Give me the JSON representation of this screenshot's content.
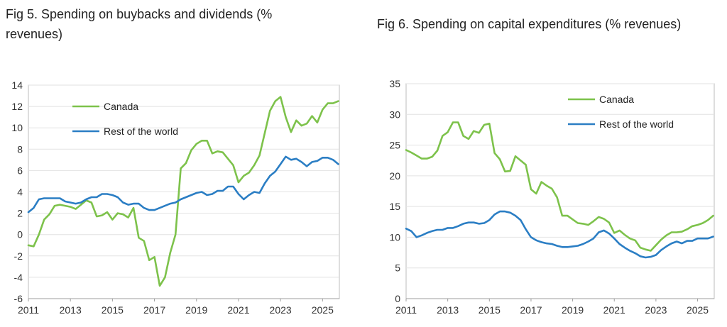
{
  "colors": {
    "canada": "#7DC24B",
    "rest": "#2B7EC4"
  },
  "chart_data": [
    {
      "type": "line",
      "title": "Fig 5. Spending on buybacks and dividends (% revenues)",
      "xlabel": "",
      "ylabel": "",
      "xlim": [
        2011,
        2025.8
      ],
      "ylim": [
        -6,
        14
      ],
      "yticks": [
        -6,
        -4,
        -2,
        0,
        2,
        4,
        6,
        8,
        10,
        12,
        14
      ],
      "xticks": [
        2011,
        2013,
        2015,
        2017,
        2019,
        2021,
        2023,
        2025
      ],
      "grid": true,
      "legend": "top-left",
      "series": [
        {
          "name": "Canada",
          "color": "#7DC24B",
          "x": [
            2011,
            2011.25,
            2011.5,
            2011.75,
            2012,
            2012.25,
            2012.5,
            2012.75,
            2013,
            2013.25,
            2013.5,
            2013.75,
            2014,
            2014.25,
            2014.5,
            2014.75,
            2015,
            2015.25,
            2015.5,
            2015.75,
            2016,
            2016.25,
            2016.5,
            2016.75,
            2017,
            2017.25,
            2017.5,
            2017.75,
            2018,
            2018.25,
            2018.5,
            2018.75,
            2019,
            2019.25,
            2019.5,
            2019.75,
            2020,
            2020.25,
            2020.5,
            2020.75,
            2021,
            2021.25,
            2021.5,
            2021.75,
            2022,
            2022.25,
            2022.5,
            2022.75,
            2023,
            2023.25,
            2023.5,
            2023.75,
            2024,
            2024.25,
            2024.5,
            2024.75,
            2025,
            2025.25,
            2025.5,
            2025.75
          ],
          "y": [
            -1,
            -1.1,
            0,
            1.4,
            1.9,
            2.7,
            2.8,
            2.7,
            2.6,
            2.4,
            2.8,
            3.2,
            3,
            1.7,
            1.8,
            2.1,
            1.4,
            2,
            1.9,
            1.6,
            2.5,
            -0.3,
            -0.6,
            -2.4,
            -2.1,
            -4.8,
            -4,
            -1.7,
            0,
            6.2,
            6.7,
            7.9,
            8.5,
            8.8,
            8.8,
            7.6,
            7.8,
            7.7,
            7.1,
            6.5,
            4.9,
            5.5,
            5.8,
            6.5,
            7.4,
            9.5,
            11.6,
            12.5,
            12.9,
            11,
            9.6,
            10.7,
            10.2,
            10.4,
            11.1,
            10.5,
            11.7,
            12.3,
            12.3,
            12.5
          ]
        },
        {
          "name": "Rest of the world",
          "color": "#2B7EC4",
          "x": [
            2011,
            2011.25,
            2011.5,
            2011.75,
            2012,
            2012.25,
            2012.5,
            2012.75,
            2013,
            2013.25,
            2013.5,
            2013.75,
            2014,
            2014.25,
            2014.5,
            2014.75,
            2015,
            2015.25,
            2015.5,
            2015.75,
            2016,
            2016.25,
            2016.5,
            2016.75,
            2017,
            2017.25,
            2017.5,
            2017.75,
            2018,
            2018.25,
            2018.5,
            2018.75,
            2019,
            2019.25,
            2019.5,
            2019.75,
            2020,
            2020.25,
            2020.5,
            2020.75,
            2021,
            2021.25,
            2021.5,
            2021.75,
            2022,
            2022.25,
            2022.5,
            2022.75,
            2023,
            2023.25,
            2023.5,
            2023.75,
            2024,
            2024.25,
            2024.5,
            2024.75,
            2025,
            2025.25,
            2025.5,
            2025.75
          ],
          "y": [
            2.1,
            2.5,
            3.3,
            3.4,
            3.4,
            3.4,
            3.4,
            3.1,
            3,
            2.9,
            3,
            3.3,
            3.5,
            3.5,
            3.8,
            3.8,
            3.7,
            3.5,
            3,
            2.8,
            2.9,
            2.9,
            2.5,
            2.3,
            2.3,
            2.5,
            2.7,
            2.9,
            3,
            3.3,
            3.5,
            3.7,
            3.9,
            4,
            3.7,
            3.8,
            4.1,
            4.1,
            4.5,
            4.5,
            3.8,
            3.3,
            3.7,
            4,
            3.9,
            4.8,
            5.5,
            5.9,
            6.6,
            7.3,
            7,
            7.1,
            6.8,
            6.4,
            6.8,
            6.9,
            7.2,
            7.2,
            7,
            6.6
          ]
        }
      ]
    },
    {
      "type": "line",
      "title": "Fig 6. Spending on capital expenditures (% revenues)",
      "xlabel": "",
      "ylabel": "",
      "xlim": [
        2011,
        2025.8
      ],
      "ylim": [
        0,
        35
      ],
      "yticks": [
        0,
        5,
        10,
        15,
        20,
        25,
        30,
        35
      ],
      "xticks": [
        2011,
        2013,
        2015,
        2017,
        2019,
        2021,
        2023,
        2025
      ],
      "grid": true,
      "legend": "top-right",
      "series": [
        {
          "name": "Canada",
          "color": "#7DC24B",
          "x": [
            2011,
            2011.25,
            2011.5,
            2011.75,
            2012,
            2012.25,
            2012.5,
            2012.75,
            2013,
            2013.25,
            2013.5,
            2013.75,
            2014,
            2014.25,
            2014.5,
            2014.75,
            2015,
            2015.25,
            2015.5,
            2015.75,
            2016,
            2016.25,
            2016.5,
            2016.75,
            2017,
            2017.25,
            2017.5,
            2017.75,
            2018,
            2018.25,
            2018.5,
            2018.75,
            2019,
            2019.25,
            2019.5,
            2019.75,
            2020,
            2020.25,
            2020.5,
            2020.75,
            2021,
            2021.25,
            2021.5,
            2021.75,
            2022,
            2022.25,
            2022.5,
            2022.75,
            2023,
            2023.25,
            2023.5,
            2023.75,
            2024,
            2024.25,
            2024.5,
            2024.75,
            2025,
            2025.25,
            2025.5,
            2025.75
          ],
          "y": [
            24.2,
            23.8,
            23.3,
            22.8,
            22.8,
            23.1,
            24.1,
            26.5,
            27.1,
            28.7,
            28.7,
            26.5,
            26,
            27.3,
            27,
            28.3,
            28.5,
            23.7,
            22.7,
            20.7,
            20.8,
            23.2,
            22.5,
            21.8,
            17.8,
            17.1,
            19,
            18.4,
            17.9,
            16.5,
            13.5,
            13.5,
            12.9,
            12.3,
            12.2,
            12,
            12.6,
            13.3,
            13,
            12.4,
            10.7,
            11.1,
            10.4,
            9.8,
            9.5,
            8.3,
            8,
            7.8,
            8.7,
            9.6,
            10.3,
            10.8,
            10.8,
            10.9,
            11.3,
            11.8,
            12,
            12.3,
            12.8,
            13.5
          ]
        },
        {
          "name": "Rest of the world",
          "color": "#2B7EC4",
          "x": [
            2011,
            2011.25,
            2011.5,
            2011.75,
            2012,
            2012.25,
            2012.5,
            2012.75,
            2013,
            2013.25,
            2013.5,
            2013.75,
            2014,
            2014.25,
            2014.5,
            2014.75,
            2015,
            2015.25,
            2015.5,
            2015.75,
            2016,
            2016.25,
            2016.5,
            2016.75,
            2017,
            2017.25,
            2017.5,
            2017.75,
            2018,
            2018.25,
            2018.5,
            2018.75,
            2019,
            2019.25,
            2019.5,
            2019.75,
            2020,
            2020.25,
            2020.5,
            2020.75,
            2021,
            2021.25,
            2021.5,
            2021.75,
            2022,
            2022.25,
            2022.5,
            2022.75,
            2023,
            2023.25,
            2023.5,
            2023.75,
            2024,
            2024.25,
            2024.5,
            2024.75,
            2025,
            2025.25,
            2025.5,
            2025.75
          ],
          "y": [
            11.4,
            11,
            10,
            10.3,
            10.7,
            11,
            11.2,
            11.2,
            11.5,
            11.5,
            11.8,
            12.2,
            12.4,
            12.4,
            12.2,
            12.3,
            12.8,
            13.7,
            14.2,
            14.2,
            14,
            13.5,
            12.8,
            11.3,
            10,
            9.5,
            9.2,
            9,
            8.9,
            8.6,
            8.4,
            8.4,
            8.5,
            8.6,
            8.9,
            9.3,
            9.8,
            10.8,
            11.1,
            10.6,
            9.8,
            8.9,
            8.3,
            7.8,
            7.4,
            6.9,
            6.7,
            6.8,
            7.1,
            7.9,
            8.5,
            9,
            9.3,
            9,
            9.4,
            9.4,
            9.8,
            9.8,
            9.8,
            10.1
          ]
        }
      ]
    }
  ]
}
